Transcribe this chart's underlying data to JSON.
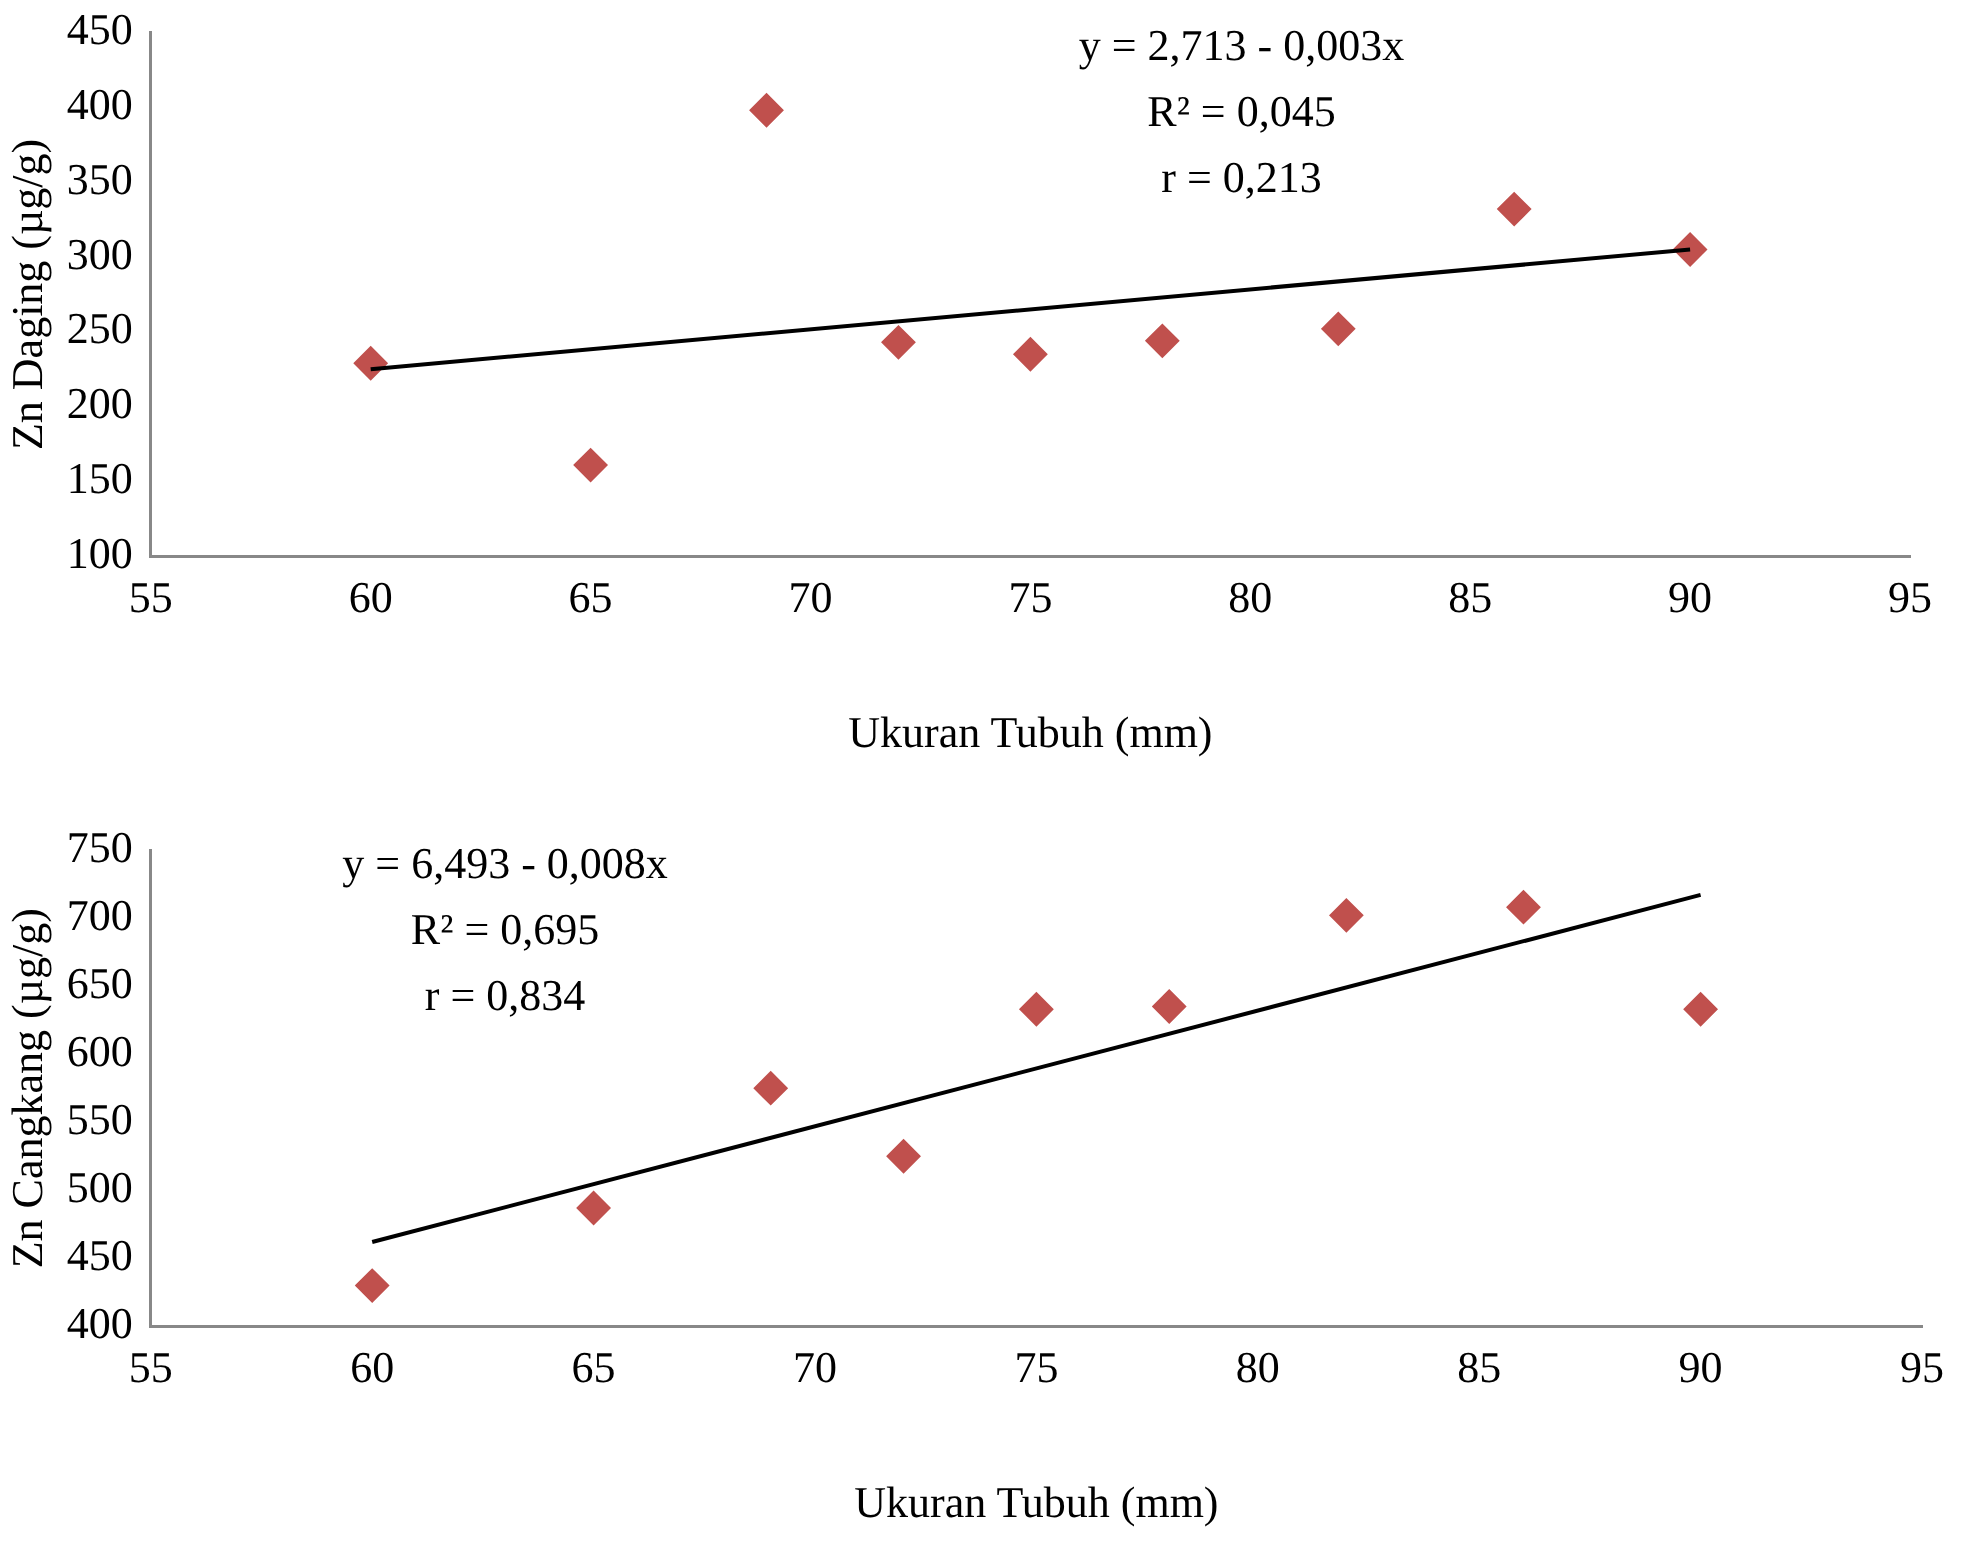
{
  "chart_data": [
    {
      "type": "scatter",
      "xlabel": "Ukuran Tubuh (mm)",
      "ylabel": "Zn Daging (µg/g)",
      "annotations": [
        "y = 2,713 - 0,003x",
        "R² = 0,045",
        "r = 0,213"
      ],
      "xlim": [
        55,
        95
      ],
      "xticks": [
        55,
        60,
        65,
        70,
        75,
        80,
        85,
        90,
        95
      ],
      "ylim": [
        100,
        450
      ],
      "yticks": [
        100,
        150,
        200,
        250,
        300,
        350,
        400,
        450
      ],
      "grid": false,
      "legend": false,
      "marker": "diamond",
      "series": [
        {
          "color": "#c0504d",
          "x": [
            60,
            65,
            69,
            72,
            75,
            78,
            82,
            86,
            90
          ],
          "values": [
            229,
            161,
            398,
            243,
            235,
            244,
            252,
            332,
            305
          ]
        },
        {
          "type": "line",
          "color": "#000000",
          "marker": "none",
          "x": [
            60,
            90
          ],
          "values": [
            225,
            305
          ]
        }
      ]
    },
    {
      "type": "scatter",
      "xlabel": "Ukuran Tubuh (mm)",
      "ylabel": "Zn Cangkang (µg/g)",
      "annotations": [
        "y = 6,493 - 0,008x",
        "R² = 0,695",
        "r = 0,834"
      ],
      "xlim": [
        55,
        95
      ],
      "xticks": [
        55,
        60,
        65,
        70,
        75,
        80,
        85,
        90,
        95
      ],
      "ylim": [
        400,
        750
      ],
      "yticks": [
        400,
        450,
        500,
        550,
        600,
        650,
        700,
        750
      ],
      "grid": false,
      "legend": false,
      "marker": "diamond",
      "series": [
        {
          "color": "#c0504d",
          "x": [
            60,
            65,
            69,
            72,
            75,
            78,
            82,
            86,
            90
          ],
          "values": [
            430,
            487,
            575,
            525,
            633,
            635,
            702,
            708,
            633
          ]
        },
        {
          "type": "line",
          "color": "#000000",
          "marker": "none",
          "x": [
            60,
            90
          ],
          "values": [
            462,
            717
          ]
        }
      ]
    }
  ]
}
